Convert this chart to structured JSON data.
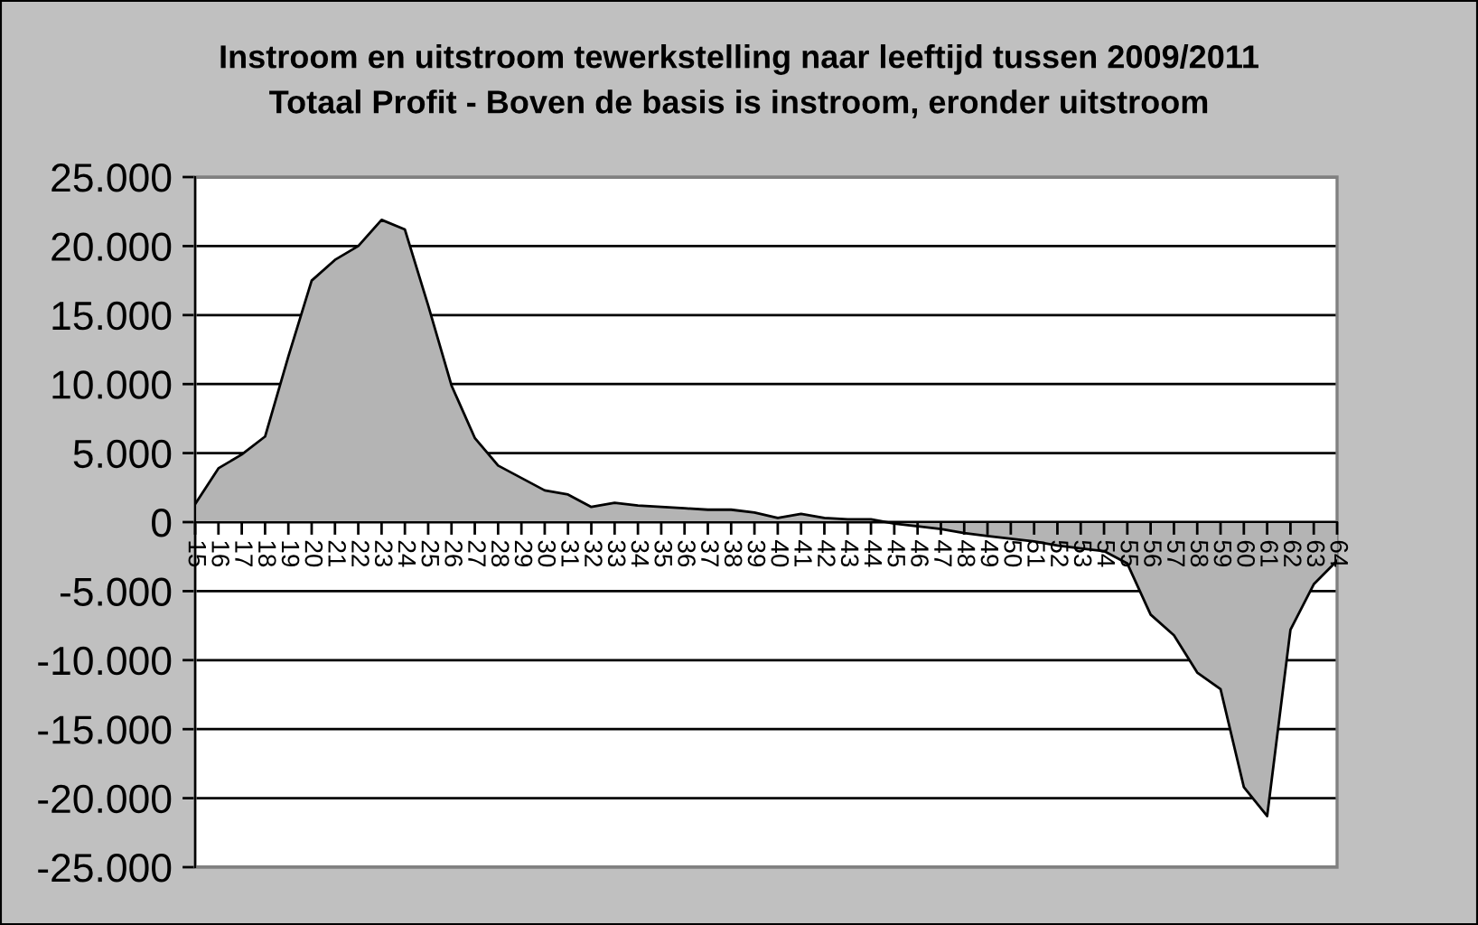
{
  "chart_data": {
    "type": "area",
    "title": "Instroom en uitstroom tewerkstelling naar leeftijd tussen 2009/2011",
    "subtitle": "Totaal Profit - Boven de basis is instroom, eronder uitstroom",
    "categories": [
      "15",
      "16",
      "17",
      "18",
      "19",
      "20",
      "21",
      "22",
      "23",
      "24",
      "25",
      "26",
      "27",
      "28",
      "29",
      "30",
      "31",
      "32",
      "33",
      "34",
      "35",
      "36",
      "37",
      "38",
      "39",
      "40",
      "41",
      "42",
      "43",
      "44",
      "45",
      "46",
      "47",
      "48",
      "49",
      "50",
      "51",
      "52",
      "53",
      "54",
      "55",
      "56",
      "57",
      "58",
      "59",
      "60",
      "61",
      "62",
      "63",
      "64"
    ],
    "values": [
      1300,
      3900,
      4900,
      6200,
      12000,
      17500,
      19000,
      20000,
      21900,
      21200,
      15700,
      9900,
      6100,
      4100,
      3200,
      2300,
      2000,
      1100,
      1400,
      1200,
      1100,
      1000,
      900,
      900,
      700,
      300,
      600,
      300,
      200,
      200,
      -100,
      -300,
      -500,
      -800,
      -1000,
      -1200,
      -1400,
      -1700,
      -1900,
      -2100,
      -3000,
      -6700,
      -8200,
      -10900,
      -12100,
      -19200,
      -21300,
      -7800,
      -4500,
      -2800
    ],
    "color": "#b4b4b4",
    "ylim": [
      -25000,
      25000
    ],
    "yticks": [
      {
        "value": -25000,
        "label": "-25.000"
      },
      {
        "value": -20000,
        "label": "-20.000"
      },
      {
        "value": -15000,
        "label": "-15.000"
      },
      {
        "value": -10000,
        "label": "-10.000"
      },
      {
        "value": -5000,
        "label": "-5.000"
      },
      0,
      {
        "value": 5000,
        "label": "5.000"
      },
      {
        "value": 10000,
        "label": "10.000"
      },
      {
        "value": 15000,
        "label": "15.000"
      },
      {
        "value": 20000,
        "label": "20.000"
      },
      {
        "value": 25000,
        "label": "25.000"
      }
    ],
    "grid": "y"
  }
}
